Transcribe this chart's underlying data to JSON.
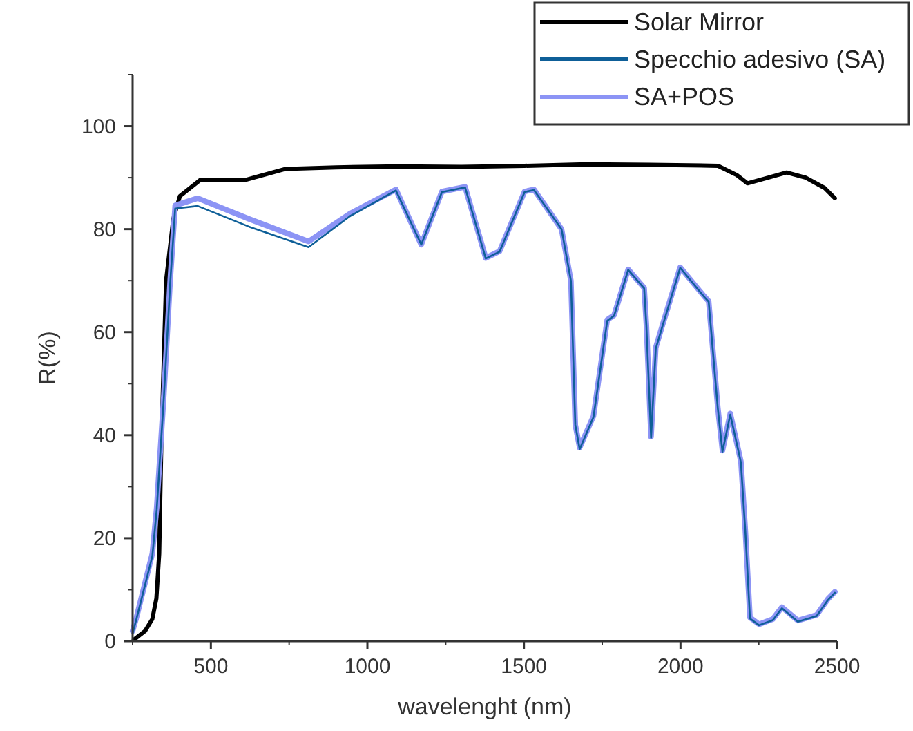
{
  "chart_data": {
    "type": "line",
    "xlabel": "wavelenght (nm)",
    "ylabel": "R(%)",
    "xlim": [
      250,
      2500
    ],
    "ylim": [
      0,
      110
    ],
    "xticks": [
      500,
      1000,
      1500,
      2000,
      2500
    ],
    "yticks": [
      0,
      20,
      40,
      60,
      80,
      100
    ],
    "grid": false,
    "legend": "top right",
    "marker": "none",
    "line_style": "solid",
    "series": [
      {
        "name": "Solar Mirror",
        "color": "#000000",
        "x": [
          254,
          290,
          313,
          326,
          335,
          342,
          357,
          380,
          401,
          467,
          607,
          739,
          900,
          1100,
          1300,
          1502,
          1700,
          1900,
          2120,
          2180,
          2214,
          2280,
          2339,
          2400,
          2460,
          2493
        ],
        "values": [
          0.3,
          2,
          4.3,
          8.3,
          17,
          39,
          70,
          82,
          86.4,
          89.6,
          89.5,
          91.7,
          92,
          92.2,
          92.1,
          92.3,
          92.6,
          92.5,
          92.3,
          90.5,
          88.9,
          90,
          91,
          90,
          88,
          86
        ]
      },
      {
        "name": "Specchio adesivo (SA)",
        "color": "#0e5f98",
        "x": [
          250,
          261,
          313,
          327,
          350,
          370,
          386,
          458,
          621,
          812,
          944,
          1091,
          1172,
          1238,
          1312,
          1378,
          1422,
          1502,
          1532,
          1620,
          1650,
          1664,
          1678,
          1722,
          1766,
          1788,
          1833,
          1884,
          1891,
          1906,
          1921,
          1943,
          1999,
          2075,
          2090,
          2119,
          2134,
          2159,
          2193,
          2207,
          2222,
          2251,
          2295,
          2324,
          2375,
          2435,
          2471,
          2493
        ],
        "values": [
          1.5,
          4,
          16.5,
          25.5,
          47.5,
          69.5,
          84,
          84.5,
          80.5,
          76.5,
          82.5,
          87.5,
          77,
          87.2,
          88.1,
          74.3,
          75.6,
          87.2,
          87.6,
          80,
          70,
          42,
          37.3,
          43.5,
          62.2,
          63.2,
          72.1,
          68.5,
          61.3,
          39.5,
          56.8,
          61.3,
          72.5,
          66.9,
          65.9,
          45.3,
          36.8,
          44,
          34.7,
          21.4,
          4.4,
          3.1,
          4.1,
          6.4,
          3.8,
          4.9,
          8,
          9.4
        ]
      },
      {
        "name": "SA+POS",
        "color": "#8c94f5",
        "x": [
          250,
          261,
          313,
          327,
          350,
          370,
          386,
          458,
          621,
          812,
          944,
          1091,
          1172,
          1238,
          1312,
          1378,
          1422,
          1502,
          1532,
          1620,
          1650,
          1664,
          1678,
          1722,
          1766,
          1788,
          1833,
          1884,
          1891,
          1906,
          1921,
          1943,
          1999,
          2075,
          2090,
          2119,
          2134,
          2159,
          2193,
          2207,
          2222,
          2251,
          2295,
          2324,
          2375,
          2435,
          2471,
          2493
        ],
        "values": [
          2,
          4.3,
          17,
          26,
          48,
          70,
          84.6,
          86,
          82,
          77.6,
          83,
          87.7,
          77,
          87.3,
          88.2,
          74.4,
          75.7,
          87.3,
          87.7,
          80,
          70,
          42,
          37.6,
          43.7,
          62.4,
          63.3,
          72.2,
          68.6,
          61.5,
          39.7,
          57,
          61.5,
          72.6,
          67,
          66,
          45.5,
          37,
          44.2,
          34.9,
          21.6,
          4.6,
          3.3,
          4.3,
          6.6,
          4,
          5.1,
          8.2,
          9.6
        ]
      }
    ]
  }
}
